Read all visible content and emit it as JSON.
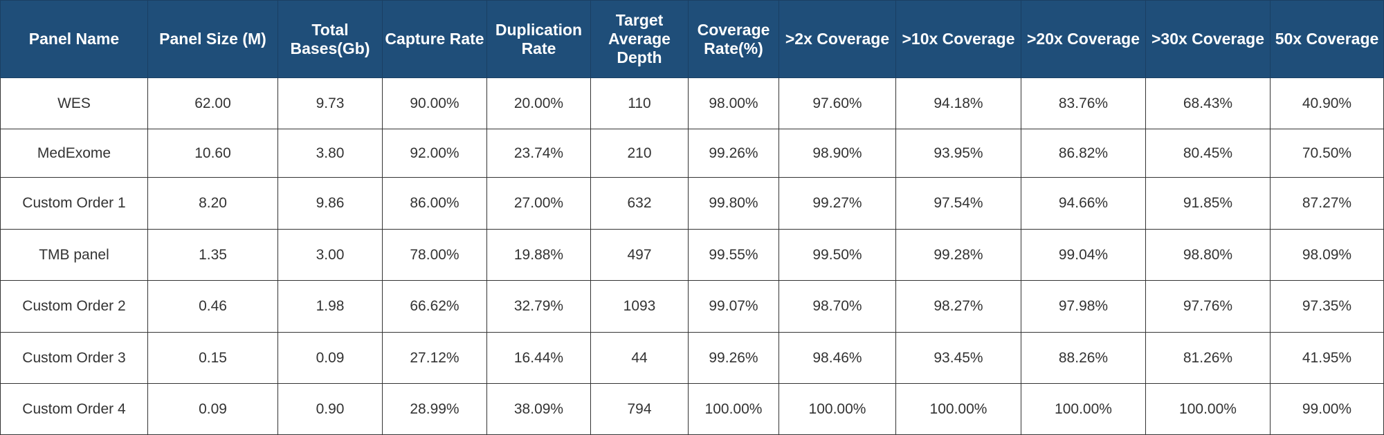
{
  "table": {
    "columns": [
      [
        "Panel Name"
      ],
      [
        "Panel Size (M)"
      ],
      [
        "Total",
        "Bases(Gb)"
      ],
      [
        "Capture Rate"
      ],
      [
        "Duplication",
        "Rate"
      ],
      [
        "Target",
        "Average",
        "Depth"
      ],
      [
        "Coverage",
        "Rate(%)"
      ],
      [
        ">2x Coverage"
      ],
      [
        ">10x Coverage"
      ],
      [
        ">20x Coverage"
      ],
      [
        ">30x Coverage"
      ],
      [
        "50x Coverage"
      ]
    ],
    "rows": [
      [
        "WES",
        "62.00",
        "9.73",
        "90.00%",
        "20.00%",
        "110",
        "98.00%",
        "97.60%",
        "94.18%",
        "83.76%",
        "68.43%",
        "40.90%"
      ],
      [
        "MedExome",
        "10.60",
        "3.80",
        "92.00%",
        "23.74%",
        "210",
        "99.26%",
        "98.90%",
        "93.95%",
        "86.82%",
        "80.45%",
        "70.50%"
      ],
      [
        "Custom Order 1",
        "8.20",
        "9.86",
        "86.00%",
        "27.00%",
        "632",
        "99.80%",
        "99.27%",
        "97.54%",
        "94.66%",
        "91.85%",
        "87.27%"
      ],
      [
        "TMB panel",
        "1.35",
        "3.00",
        "78.00%",
        "19.88%",
        "497",
        "99.55%",
        "99.50%",
        "99.28%",
        "99.04%",
        "98.80%",
        "98.09%"
      ],
      [
        "Custom Order 2",
        "0.46",
        "1.98",
        "66.62%",
        "32.79%",
        "1093",
        "99.07%",
        "98.70%",
        "98.27%",
        "97.98%",
        "97.76%",
        "97.35%"
      ],
      [
        "Custom Order 3",
        "0.15",
        "0.09",
        "27.12%",
        "16.44%",
        "44",
        "99.26%",
        "98.46%",
        "93.45%",
        "88.26%",
        "81.26%",
        "41.95%"
      ],
      [
        "Custom Order 4",
        "0.09",
        "0.90",
        "28.99%",
        "38.09%",
        "794",
        "100.00%",
        "100.00%",
        "100.00%",
        "100.00%",
        "100.00%",
        "99.00%"
      ]
    ]
  },
  "colors": {
    "header_bg": "#1f4e79",
    "header_text": "#ffffff",
    "cell_text": "#333333",
    "grid": "#333333"
  }
}
